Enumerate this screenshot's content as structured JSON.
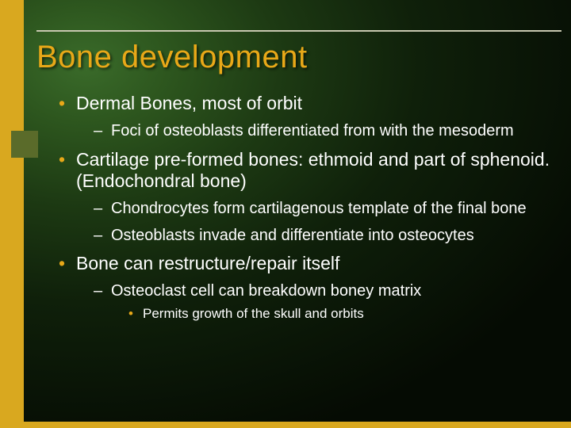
{
  "colors": {
    "accent": "#e8a818",
    "leftbar": "#d9a81f",
    "square": "#5a6b2a",
    "text": "#ffffff",
    "rule": "#c8c8b0",
    "bg_gradient_center": "#3a6b2a",
    "bg_gradient_edge": "#050b03"
  },
  "typography": {
    "title_fontsize": 40,
    "level1_fontsize": 23,
    "level2_fontsize": 20,
    "level3_fontsize": 17,
    "font_family": "Arial"
  },
  "slide": {
    "title": "Bone development",
    "bullets": [
      {
        "text": "Dermal Bones, most of orbit",
        "children": [
          {
            "text": "Foci of osteoblasts differentiated from with the mesoderm"
          }
        ]
      },
      {
        "text": "Cartilage pre-formed bones: ethmoid and part of sphenoid. (Endochondral bone)",
        "children": [
          {
            "text": "Chondrocytes form cartilagenous template of the final bone"
          },
          {
            "text": "Osteoblasts invade and differentiate into osteocytes"
          }
        ]
      },
      {
        "text": "Bone can restructure/repair itself",
        "children": [
          {
            "text": "Osteoclast cell can breakdown boney matrix",
            "children": [
              {
                "text": "Permits growth of the skull and orbits"
              }
            ]
          }
        ]
      }
    ]
  }
}
